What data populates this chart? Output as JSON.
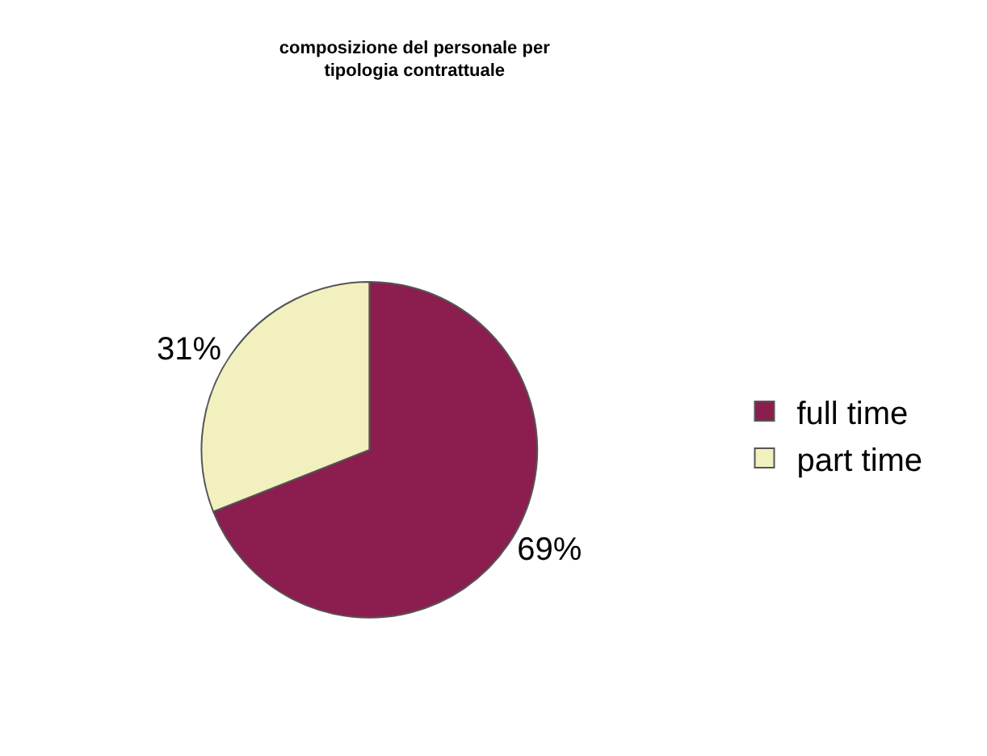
{
  "chart_data": {
    "type": "pie",
    "title": "composizione del personale per\ntipologia contrattuale",
    "categories": [
      "full time",
      "part time"
    ],
    "values": [
      69,
      31
    ],
    "value_labels": [
      "69%",
      "31%"
    ],
    "colors": [
      "#8c1d4f",
      "#f2f0be"
    ],
    "legend": "right"
  }
}
